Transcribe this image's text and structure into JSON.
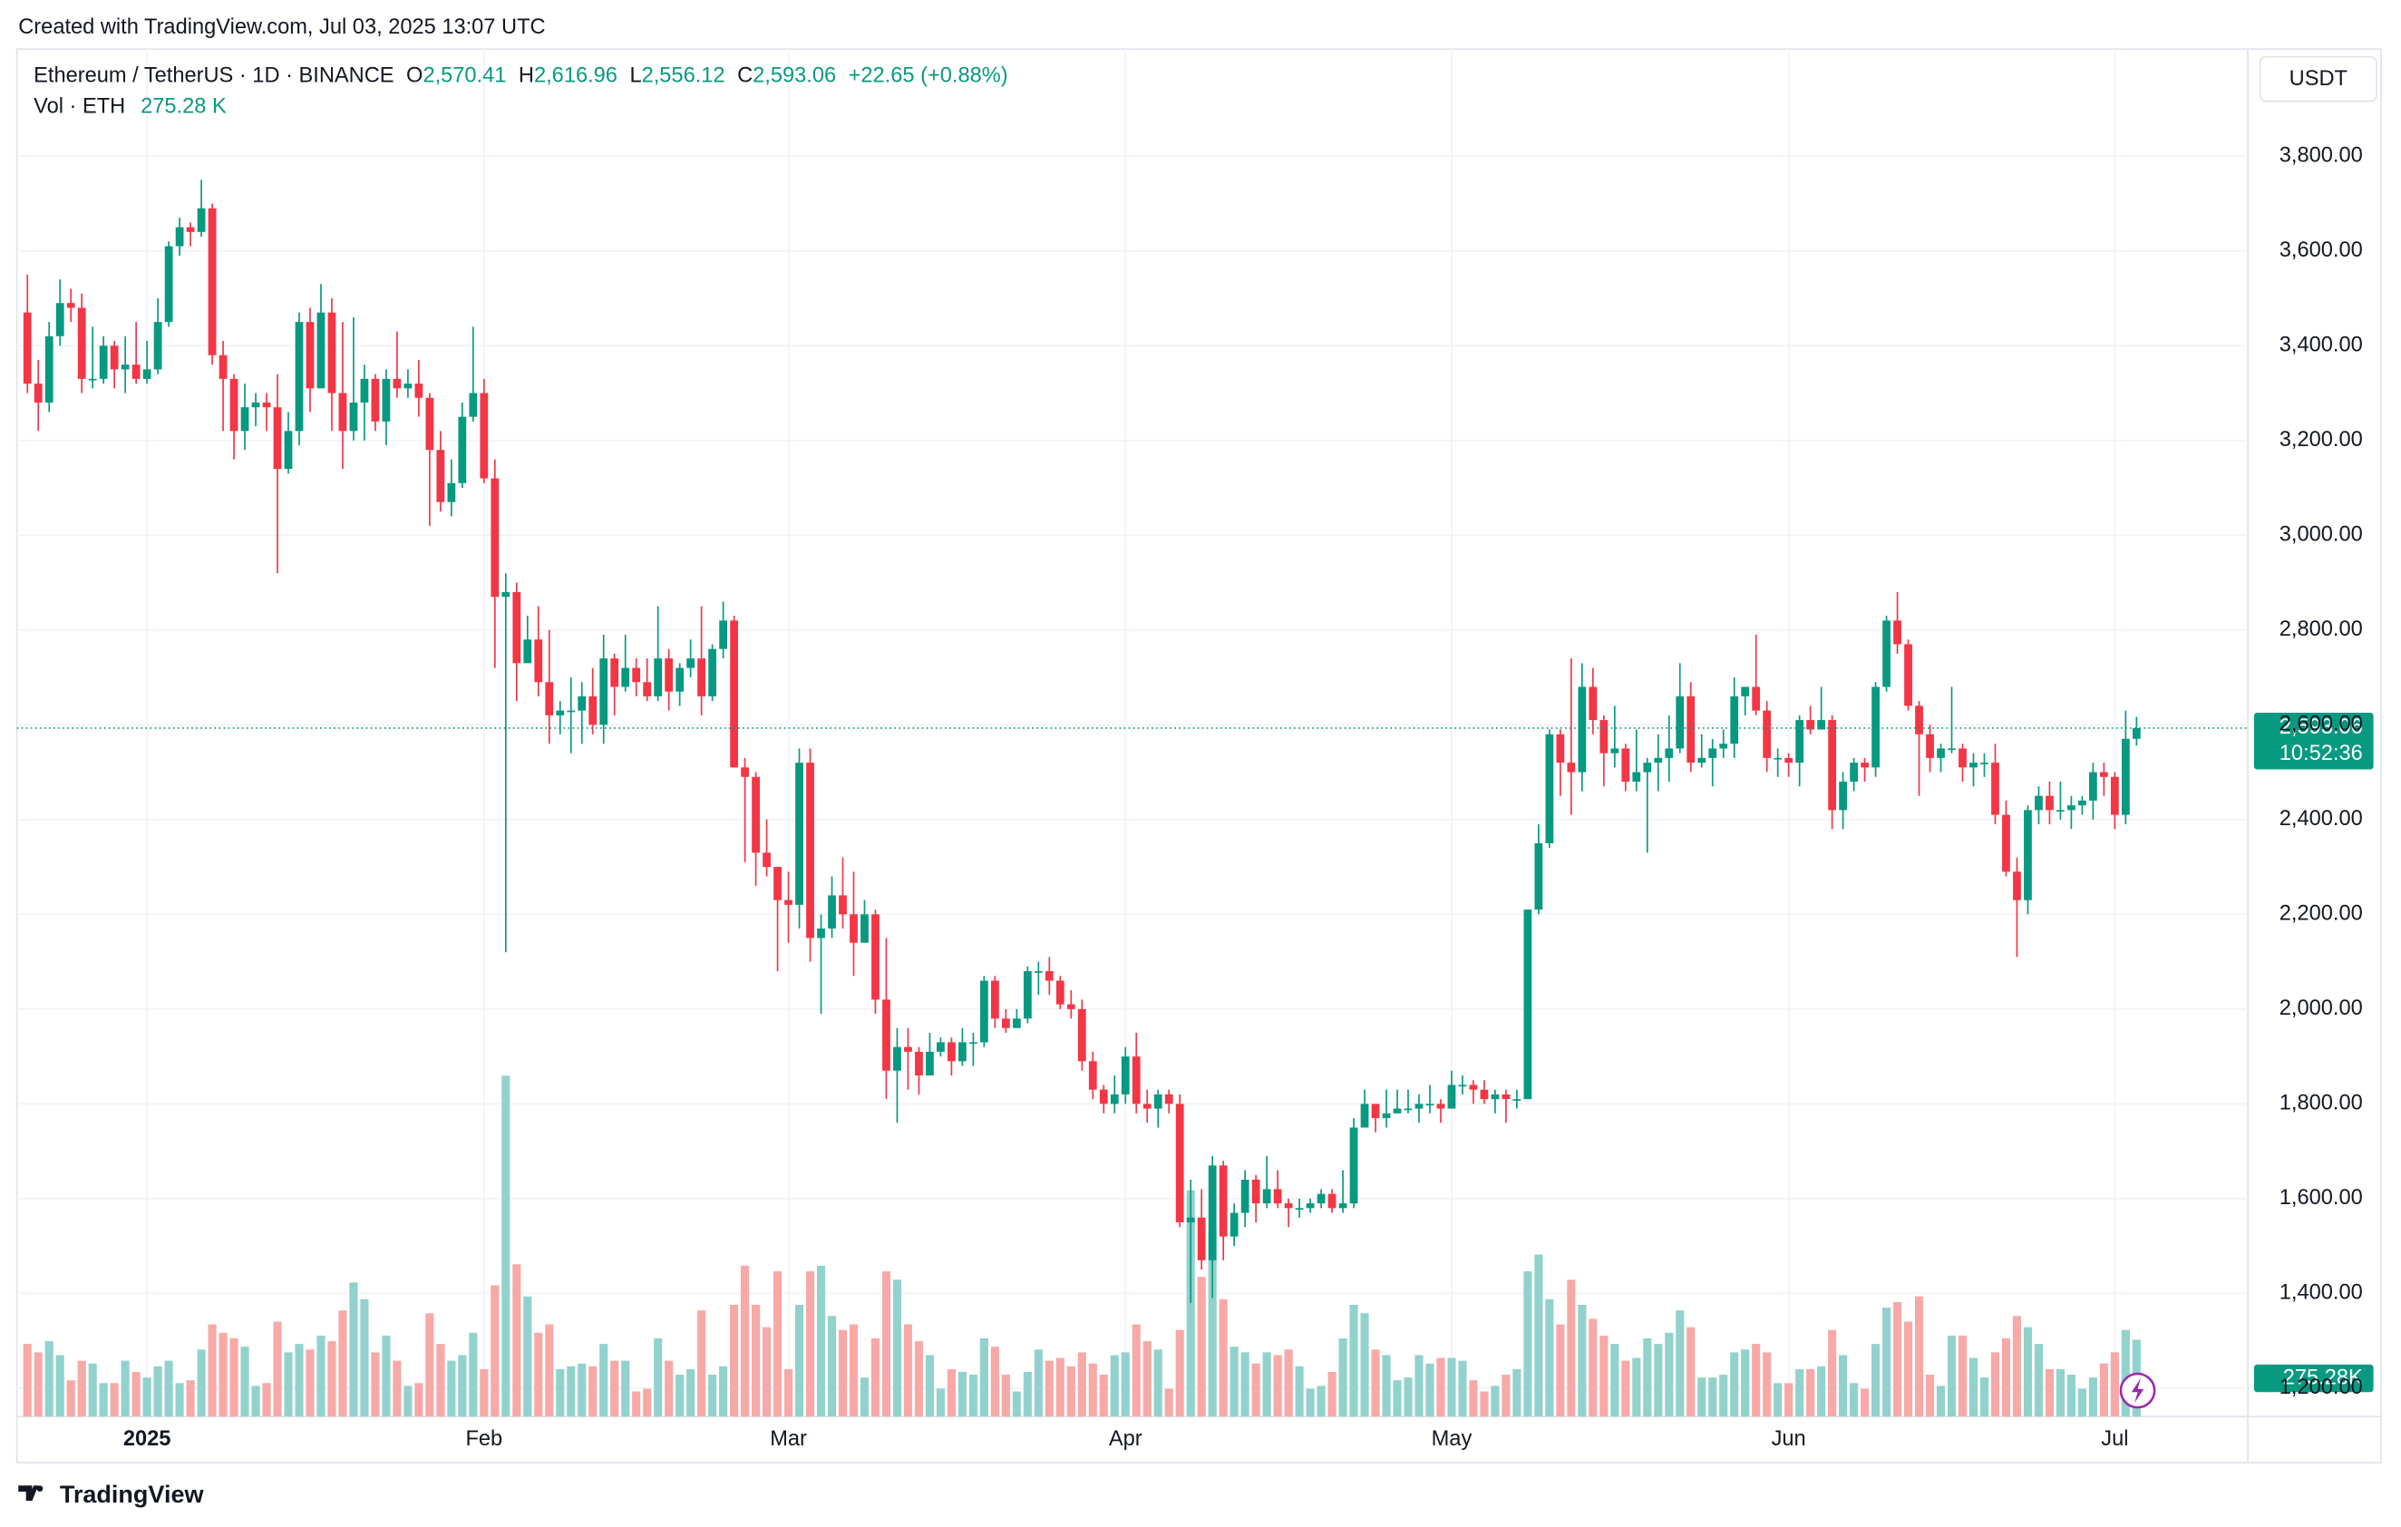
{
  "chart_data": {
    "type": "candlestick",
    "created": "Created with TradingView.com, Jul 03, 2025 13:07 UTC",
    "symbol": "Ethereum / TetherUS · 1D · BINANCE",
    "legend": [
      {
        "key": "O",
        "label": "2,570.41"
      },
      {
        "key": "H",
        "label": "2,616.96"
      },
      {
        "key": "L",
        "label": "2,556.12"
      },
      {
        "key": "C",
        "label": "2,593.06"
      }
    ],
    "change": "+22.65 (+0.88%)",
    "volume_title": "Vol · ETH",
    "volume_label": "275.28 K",
    "volume_badge": "275.28K",
    "currency": "USDT",
    "countdown": "10:52:36",
    "brand": "TradingView",
    "up_color": "#089981",
    "down_color": "#f23645",
    "volume_up_color": "#92d2cc",
    "volume_down_color": "#f7a9a7",
    "grid": true,
    "categories": [
      null,
      null,
      null,
      null,
      null,
      null,
      null,
      null,
      null,
      null,
      null,
      "2025",
      null,
      null,
      null,
      null,
      null,
      null,
      null,
      null,
      null,
      null,
      null,
      null,
      null,
      null,
      null,
      null,
      null,
      null,
      null,
      null,
      null,
      null,
      null,
      null,
      null,
      null,
      null,
      null,
      null,
      null,
      "Feb",
      null,
      null,
      null,
      null,
      null,
      null,
      null,
      null,
      null,
      null,
      null,
      null,
      null,
      null,
      null,
      null,
      null,
      null,
      null,
      null,
      null,
      null,
      null,
      null,
      null,
      null,
      null,
      "Mar",
      null,
      null,
      null,
      null,
      null,
      null,
      null,
      null,
      null,
      null,
      null,
      null,
      null,
      null,
      null,
      null,
      null,
      null,
      null,
      null,
      null,
      null,
      null,
      null,
      null,
      null,
      null,
      null,
      null,
      null,
      "Apr",
      null,
      null,
      null,
      null,
      null,
      null,
      null,
      null,
      null,
      null,
      null,
      null,
      null,
      null,
      null,
      null,
      null,
      null,
      null,
      null,
      null,
      null,
      null,
      null,
      null,
      null,
      null,
      null,
      null,
      "May",
      null,
      null,
      null,
      null,
      null,
      null,
      null,
      null,
      null,
      null,
      null,
      null,
      null,
      null,
      null,
      null,
      null,
      null,
      null,
      null,
      null,
      null,
      null,
      null,
      null,
      null,
      null,
      null,
      null,
      null,
      "Jun",
      null,
      null,
      null,
      null,
      null,
      null,
      null,
      null,
      null,
      null,
      null,
      null,
      null,
      null,
      null,
      null,
      null,
      null,
      null,
      null,
      null,
      null,
      null,
      null,
      null,
      null,
      null,
      null,
      null,
      "Jul",
      null,
      null
    ],
    "open": [
      3470,
      3320,
      3280,
      3420,
      3490,
      3480,
      3330,
      3330,
      3400,
      3350,
      3360,
      3330,
      3350,
      3450,
      3610,
      3650,
      3640,
      3690,
      3380,
      3330,
      3220,
      3270,
      3280,
      3270,
      3140,
      3220,
      3450,
      3310,
      3470,
      3300,
      3220,
      3280,
      3330,
      3240,
      3330,
      3310,
      3320,
      3290,
      3180,
      3070,
      3110,
      3250,
      3300,
      3120,
      2870,
      2880,
      2730,
      2780,
      2690,
      2620,
      2630,
      2630,
      2660,
      2600,
      2740,
      2680,
      2720,
      2690,
      2660,
      2740,
      2670,
      2720,
      2740,
      2660,
      2760,
      2820,
      2510,
      2490,
      2330,
      2300,
      2230,
      2220,
      2520,
      2150,
      2170,
      2240,
      2200,
      2140,
      2200,
      2020,
      1870,
      1920,
      1910,
      1860,
      1910,
      1930,
      1890,
      1930,
      1930,
      2060,
      1980,
      1960,
      1980,
      2080,
      2080,
      2060,
      2010,
      2000,
      1890,
      1830,
      1800,
      1820,
      1900,
      1800,
      1790,
      1820,
      1800,
      1550,
      1560,
      1470,
      1670,
      1520,
      1570,
      1640,
      1590,
      1620,
      1590,
      1580,
      1580,
      1590,
      1610,
      1580,
      1590,
      1750,
      1800,
      1770,
      1780,
      1790,
      1790,
      1800,
      1800,
      1790,
      1840,
      1840,
      1830,
      1810,
      1820,
      1810,
      1810,
      2210,
      2350,
      2580,
      2520,
      2500,
      2680,
      2610,
      2540,
      2550,
      2480,
      2500,
      2520,
      2530,
      2550,
      2660,
      2520,
      2530,
      2550,
      2560,
      2660,
      2680,
      2630,
      2530,
      2530,
      2520,
      2610,
      2590,
      2610,
      2420,
      2480,
      2520,
      2510,
      2680,
      2820,
      2770,
      2640,
      2580,
      2530,
      2550,
      2550,
      2510,
      2520,
      2520,
      2410,
      2290,
      2230,
      2420,
      2450,
      2420,
      2420,
      2430,
      2440,
      2500,
      2490,
      2410,
      2570.41
    ],
    "high": [
      3550,
      3370,
      3450,
      3540,
      3520,
      3510,
      3440,
      3420,
      3410,
      3420,
      3450,
      3410,
      3500,
      3620,
      3670,
      3660,
      3750,
      3700,
      3410,
      3340,
      3320,
      3300,
      3300,
      3340,
      3260,
      3470,
      3480,
      3530,
      3500,
      3450,
      3460,
      3360,
      3340,
      3350,
      3430,
      3350,
      3370,
      3300,
      3220,
      3160,
      3280,
      3440,
      3330,
      3160,
      2920,
      2900,
      2830,
      2850,
      2800,
      2650,
      2700,
      2690,
      2720,
      2790,
      2750,
      2790,
      2740,
      2740,
      2850,
      2760,
      2730,
      2780,
      2850,
      2770,
      2860,
      2830,
      2530,
      2500,
      2400,
      2300,
      2290,
      2550,
      2550,
      2200,
      2280,
      2320,
      2290,
      2230,
      2210,
      2150,
      1960,
      1960,
      1920,
      1950,
      1940,
      1940,
      1960,
      1950,
      2070,
      2070,
      2000,
      2000,
      2090,
      2100,
      2110,
      2070,
      2040,
      2020,
      1910,
      1840,
      1860,
      1920,
      1950,
      1830,
      1830,
      1830,
      1820,
      1640,
      1620,
      1690,
      1680,
      1590,
      1660,
      1650,
      1690,
      1660,
      1600,
      1600,
      1600,
      1620,
      1620,
      1660,
      1770,
      1830,
      1800,
      1830,
      1830,
      1830,
      1820,
      1840,
      1810,
      1870,
      1860,
      1850,
      1850,
      1830,
      1830,
      1830,
      2210,
      2390,
      2590,
      2590,
      2740,
      2730,
      2720,
      2620,
      2640,
      2560,
      2590,
      2530,
      2580,
      2620,
      2730,
      2690,
      2580,
      2570,
      2590,
      2700,
      2680,
      2790,
      2650,
      2550,
      2540,
      2620,
      2640,
      2680,
      2620,
      2500,
      2530,
      2530,
      2690,
      2830,
      2880,
      2780,
      2650,
      2600,
      2560,
      2680,
      2560,
      2540,
      2540,
      2560,
      2440,
      2320,
      2430,
      2470,
      2480,
      2480,
      2450,
      2450,
      2520,
      2520,
      2500,
      2630,
      2616.96
    ],
    "low": [
      3300,
      3220,
      3260,
      3400,
      3450,
      3300,
      3310,
      3320,
      3310,
      3300,
      3320,
      3320,
      3340,
      3440,
      3590,
      3610,
      3630,
      3360,
      3220,
      3160,
      3180,
      3230,
      3220,
      2920,
      3130,
      3190,
      3260,
      3310,
      3220,
      3140,
      3200,
      3200,
      3220,
      3190,
      3290,
      3290,
      3250,
      3020,
      3050,
      3040,
      3100,
      3240,
      3110,
      2720,
      2120,
      2650,
      2730,
      2660,
      2560,
      2580,
      2540,
      2560,
      2580,
      2560,
      2620,
      2670,
      2660,
      2650,
      2650,
      2630,
      2640,
      2700,
      2620,
      2650,
      2740,
      2510,
      2310,
      2260,
      2280,
      2080,
      2140,
      2170,
      2100,
      1990,
      2150,
      2170,
      2070,
      2140,
      1990,
      1810,
      1760,
      1830,
      1820,
      1860,
      1900,
      1860,
      1880,
      1880,
      1920,
      1960,
      1950,
      1960,
      1970,
      2030,
      2030,
      2000,
      1980,
      1870,
      1810,
      1780,
      1780,
      1800,
      1780,
      1760,
      1750,
      1780,
      1540,
      1380,
      1450,
      1390,
      1470,
      1500,
      1540,
      1550,
      1580,
      1580,
      1540,
      1560,
      1570,
      1580,
      1570,
      1570,
      1580,
      1750,
      1740,
      1750,
      1780,
      1780,
      1760,
      1780,
      1760,
      1790,
      1820,
      1800,
      1800,
      1780,
      1760,
      1790,
      1810,
      2200,
      2340,
      2450,
      2410,
      2460,
      2580,
      2470,
      2510,
      2460,
      2460,
      2330,
      2460,
      2480,
      2540,
      2500,
      2510,
      2470,
      2530,
      2530,
      2620,
      2620,
      2500,
      2490,
      2490,
      2470,
      2580,
      2590,
      2380,
      2380,
      2460,
      2480,
      2490,
      2670,
      2750,
      2630,
      2450,
      2500,
      2500,
      2540,
      2480,
      2470,
      2490,
      2390,
      2280,
      2110,
      2200,
      2390,
      2390,
      2400,
      2380,
      2410,
      2400,
      2450,
      2380,
      2390,
      2556.12
    ],
    "close": [
      3320,
      3280,
      3420,
      3490,
      3480,
      3330,
      3330,
      3400,
      3350,
      3360,
      3330,
      3350,
      3450,
      3610,
      3650,
      3640,
      3690,
      3380,
      3330,
      3220,
      3270,
      3280,
      3270,
      3140,
      3220,
      3450,
      3310,
      3470,
      3300,
      3220,
      3280,
      3330,
      3240,
      3330,
      3310,
      3320,
      3290,
      3180,
      3070,
      3110,
      3250,
      3300,
      3120,
      2870,
      2880,
      2730,
      2780,
      2690,
      2620,
      2630,
      2630,
      2660,
      2600,
      2740,
      2680,
      2720,
      2690,
      2660,
      2740,
      2670,
      2720,
      2740,
      2660,
      2760,
      2820,
      2510,
      2490,
      2330,
      2300,
      2230,
      2220,
      2520,
      2150,
      2170,
      2240,
      2200,
      2140,
      2200,
      2020,
      1870,
      1920,
      1910,
      1860,
      1910,
      1930,
      1890,
      1930,
      1930,
      2060,
      1980,
      1960,
      1980,
      2080,
      2080,
      2060,
      2010,
      2000,
      1890,
      1830,
      1800,
      1820,
      1900,
      1800,
      1790,
      1820,
      1800,
      1550,
      1560,
      1470,
      1670,
      1520,
      1570,
      1640,
      1590,
      1620,
      1590,
      1580,
      1580,
      1590,
      1610,
      1580,
      1590,
      1750,
      1800,
      1770,
      1780,
      1790,
      1790,
      1800,
      1800,
      1790,
      1840,
      1840,
      1830,
      1810,
      1820,
      1810,
      1810,
      2210,
      2350,
      2580,
      2520,
      2500,
      2680,
      2610,
      2540,
      2550,
      2480,
      2500,
      2520,
      2530,
      2550,
      2660,
      2520,
      2530,
      2550,
      2560,
      2660,
      2680,
      2630,
      2530,
      2530,
      2520,
      2610,
      2590,
      2610,
      2420,
      2480,
      2520,
      2510,
      2680,
      2820,
      2770,
      2640,
      2580,
      2530,
      2550,
      2550,
      2510,
      2520,
      2520,
      2410,
      2290,
      2230,
      2420,
      2450,
      2420,
      2420,
      2430,
      2440,
      2500,
      2490,
      2410,
      2570.41,
      2593.06
    ],
    "volume": [
      260,
      230,
      270,
      220,
      130,
      200,
      190,
      120,
      120,
      200,
      160,
      140,
      180,
      200,
      120,
      130,
      240,
      330,
      300,
      280,
      250,
      110,
      120,
      340,
      230,
      260,
      240,
      290,
      270,
      380,
      480,
      420,
      230,
      290,
      200,
      110,
      120,
      370,
      260,
      200,
      220,
      300,
      170,
      470,
      1220,
      545,
      430,
      300,
      330,
      170,
      180,
      190,
      180,
      260,
      200,
      200,
      90,
      100,
      280,
      200,
      150,
      170,
      380,
      150,
      180,
      400,
      540,
      400,
      320,
      520,
      170,
      400,
      520,
      540,
      360,
      310,
      330,
      140,
      280,
      520,
      490,
      330,
      270,
      220,
      100,
      170,
      160,
      150,
      280,
      250,
      150,
      90,
      160,
      240,
      200,
      210,
      180,
      230,
      190,
      150,
      220,
      230,
      330,
      270,
      240,
      100,
      310,
      810,
      500,
      670,
      420,
      250,
      230,
      190,
      230,
      220,
      240,
      180,
      100,
      110,
      160,
      280,
      400,
      370,
      240,
      220,
      130,
      140,
      220,
      190,
      210,
      210,
      200,
      130,
      90,
      110,
      150,
      170,
      520,
      580,
      420,
      330,
      490,
      400,
      350,
      290,
      260,
      200,
      210,
      280,
      260,
      300,
      380,
      320,
      140,
      140,
      150,
      230,
      240,
      260,
      230,
      120,
      120,
      170,
      170,
      180,
      310,
      220,
      120,
      100,
      260,
      390,
      410,
      340,
      430,
      150,
      110,
      290,
      290,
      210,
      140,
      230,
      280,
      360,
      320,
      260,
      170,
      170,
      150,
      100,
      140,
      190,
      230,
      310,
      275.28
    ],
    "ylim": [
      1140,
      4000
    ],
    "yticks": [
      {
        "value": 1200,
        "label": "1,200.00"
      },
      {
        "value": 1400,
        "label": "1,400.00"
      },
      {
        "value": 1600,
        "label": "1,600.00"
      },
      {
        "value": 1800,
        "label": "1,800.00"
      },
      {
        "value": 2000,
        "label": "2,000.00"
      },
      {
        "value": 2200,
        "label": "2,200.00"
      },
      {
        "value": 2400,
        "label": "2,400.00"
      },
      {
        "value": 2600,
        "label": "2,600.00"
      },
      {
        "value": 2800,
        "label": "2,800.00"
      },
      {
        "value": 3000,
        "label": "3,000.00"
      },
      {
        "value": 3200,
        "label": "3,200.00"
      },
      {
        "value": 3400,
        "label": "3,400.00"
      },
      {
        "value": 3600,
        "label": "3,600.00"
      },
      {
        "value": 3800,
        "label": "3,800.00"
      }
    ],
    "y2lim": [
      0,
      4850
    ]
  }
}
